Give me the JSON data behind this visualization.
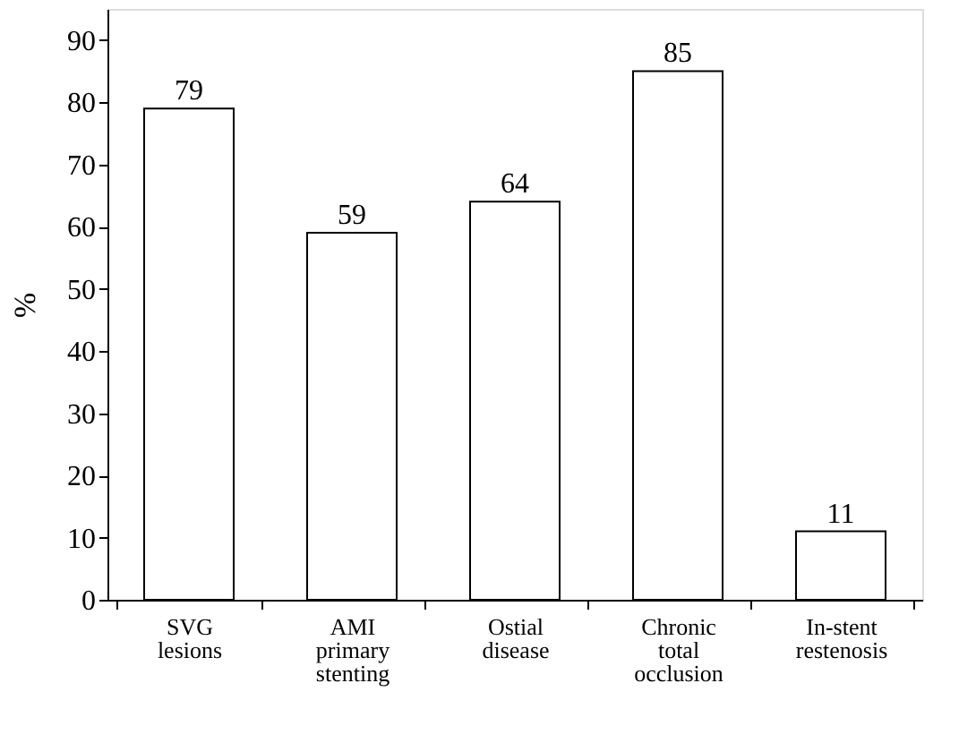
{
  "chart_data": {
    "type": "bar",
    "ylabel": "%",
    "categories": [
      "SVG\nlesions",
      "AMI\nprimary\nstenting",
      "Ostial\ndisease",
      "Chronic\ntotal\nocclusion",
      "In-stent\nrestenosis"
    ],
    "values": [
      79,
      59,
      64,
      85,
      11
    ],
    "color": "#ffffff",
    "ylim": [
      0,
      95
    ],
    "yticks": [
      0,
      10,
      20,
      30,
      40,
      50,
      60,
      70,
      80,
      90
    ],
    "grid": false,
    "data_labels": true
  }
}
